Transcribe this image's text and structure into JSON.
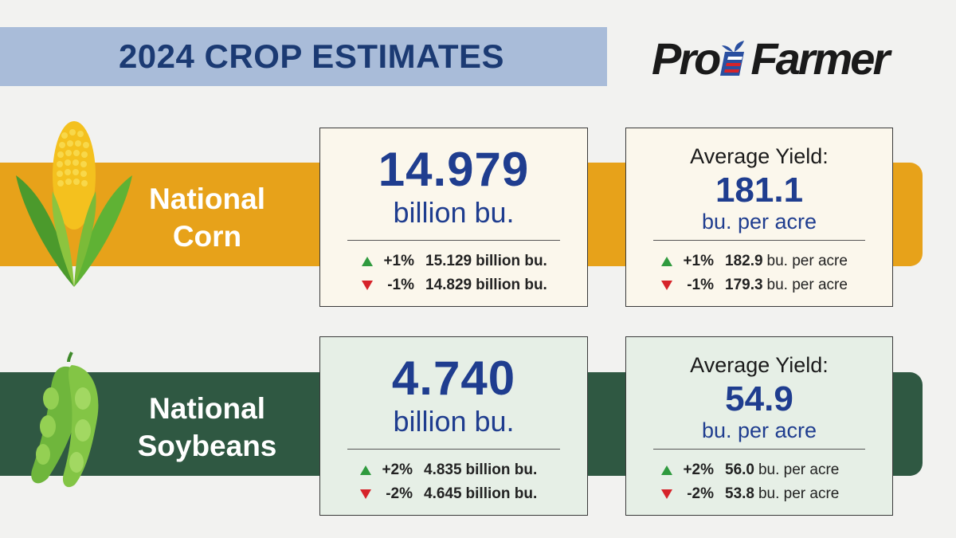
{
  "header": {
    "title": "2024 CROP ESTIMATES",
    "logo_text": "Pro Farmer"
  },
  "colors": {
    "title_bg": "#a9bcd9",
    "title_text": "#1b3a73",
    "corn_band": "#e7a21a",
    "soy_band": "#2f5842",
    "value_blue": "#1f3d8f",
    "up_green": "#2f9a3e",
    "down_red": "#d6232a"
  },
  "corn": {
    "label_line1": "National",
    "label_line2": "Corn",
    "icon": "corn-cob-icon",
    "production": {
      "value": "14.979",
      "unit": "billion bu.",
      "up": {
        "pct": "+1%",
        "value": "15.129",
        "unit": "billion bu."
      },
      "down": {
        "pct": "-1%",
        "value": "14.829",
        "unit": "billion bu."
      }
    },
    "yield": {
      "heading": "Average Yield:",
      "value": "181.1",
      "unit": "bu. per acre",
      "up": {
        "pct": "+1%",
        "value": "182.9",
        "unit": "bu. per acre"
      },
      "down": {
        "pct": "-1%",
        "value": "179.3",
        "unit": "bu. per acre"
      }
    }
  },
  "soybeans": {
    "label_line1": "National",
    "label_line2": "Soybeans",
    "icon": "soybean-pods-icon",
    "production": {
      "value": "4.740",
      "unit": "billion bu.",
      "up": {
        "pct": "+2%",
        "value": "4.835",
        "unit": "billion bu."
      },
      "down": {
        "pct": "-2%",
        "value": "4.645",
        "unit": "billion bu."
      }
    },
    "yield": {
      "heading": "Average Yield:",
      "value": "54.9",
      "unit": "bu. per acre",
      "up": {
        "pct": "+2%",
        "value": "56.0",
        "unit": "bu. per acre"
      },
      "down": {
        "pct": "-2%",
        "value": "53.8",
        "unit": "bu. per acre"
      }
    }
  }
}
